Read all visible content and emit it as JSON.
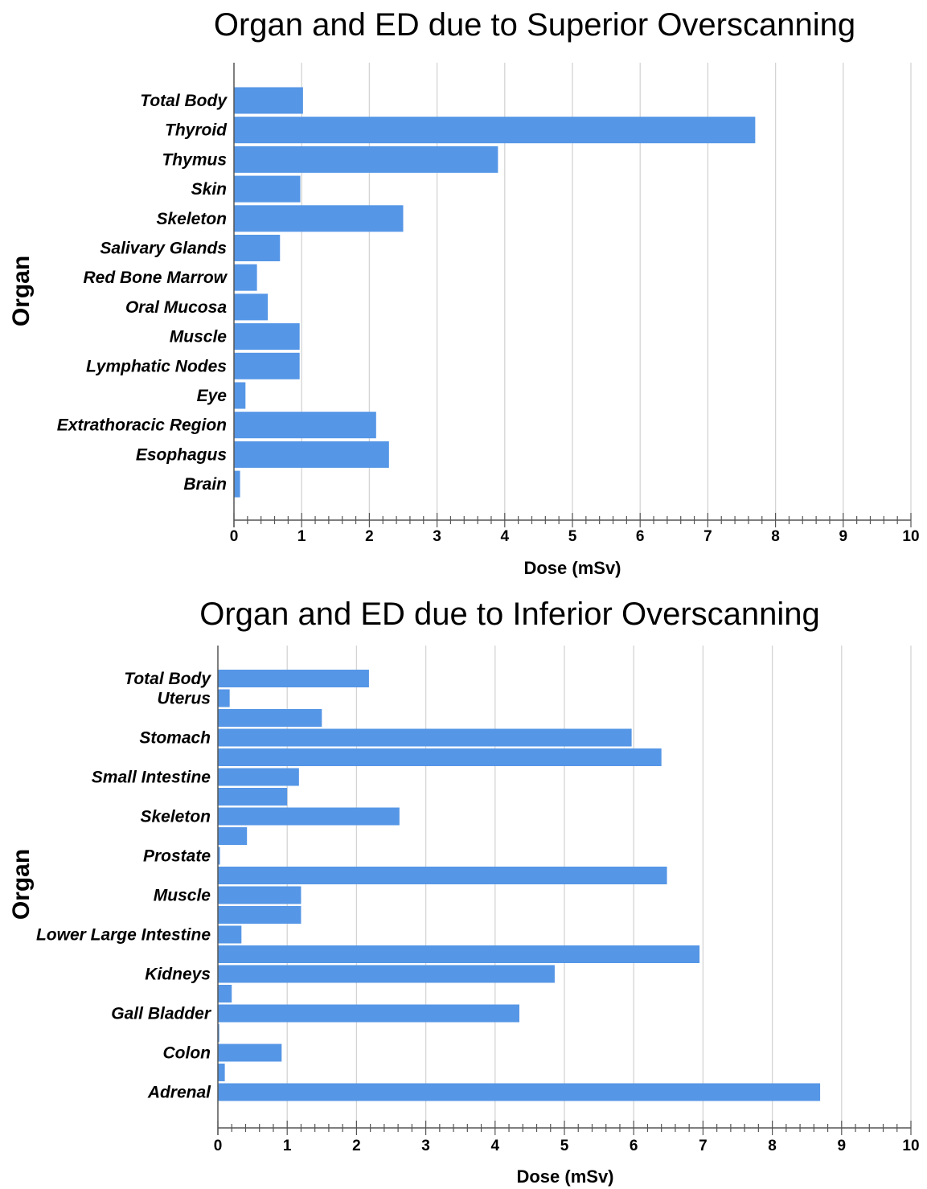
{
  "colors": {
    "bar": "#5596e6",
    "grid": "#d4d4d4",
    "axis": "#555555"
  },
  "chart_data": [
    {
      "type": "bar",
      "orientation": "horizontal",
      "title": "Organ and ED due to Superior Overscanning",
      "xlabel": "Dose (mSv)",
      "ylabel": "Organ",
      "xlim": [
        0,
        10
      ],
      "xticks": [
        "0",
        "1",
        "2",
        "3",
        "4",
        "5",
        "6",
        "7",
        "8",
        "9",
        "10"
      ],
      "grid": "vertical",
      "categories": [
        "Total Body",
        "Thyroid",
        "Thymus",
        "Skin",
        "Skeleton",
        "Salivary Glands",
        "Red Bone Marrow",
        "Oral Mucosa",
        "Muscle",
        "Lymphatic Nodes",
        "Eye",
        "Extrathoracic Region",
        "Esophagus",
        "Brain"
      ],
      "values": [
        1.02,
        7.7,
        3.9,
        0.98,
        2.5,
        0.68,
        0.34,
        0.5,
        0.97,
        0.97,
        0.17,
        2.1,
        2.29,
        0.09
      ]
    },
    {
      "type": "bar",
      "orientation": "horizontal",
      "title": "Organ and ED due to Inferior Overscanning",
      "xlabel": "Dose (mSv)",
      "ylabel": "Organ",
      "xlim": [
        0,
        10
      ],
      "xticks": [
        "0",
        "1",
        "2",
        "3",
        "4",
        "5",
        "6",
        "7",
        "8",
        "9",
        "10"
      ],
      "grid": "vertical",
      "categories": [
        "Total Body",
        "Uterus",
        "",
        "Stomach",
        "",
        "Small Intestine",
        "",
        "Skeleton",
        "",
        "Prostate",
        "",
        "Muscle",
        "",
        "Lower Large Intestine",
        "",
        "Kidneys",
        "",
        "Gall Bladder",
        "",
        "Colon",
        "",
        "Adrenal"
      ],
      "values": [
        2.18,
        0.17,
        1.5,
        5.97,
        6.4,
        1.17,
        1.0,
        2.62,
        0.42,
        0.03,
        6.48,
        1.2,
        1.2,
        0.34,
        6.95,
        4.86,
        0.2,
        4.35,
        0.02,
        0.92,
        0.1,
        8.69
      ]
    }
  ]
}
